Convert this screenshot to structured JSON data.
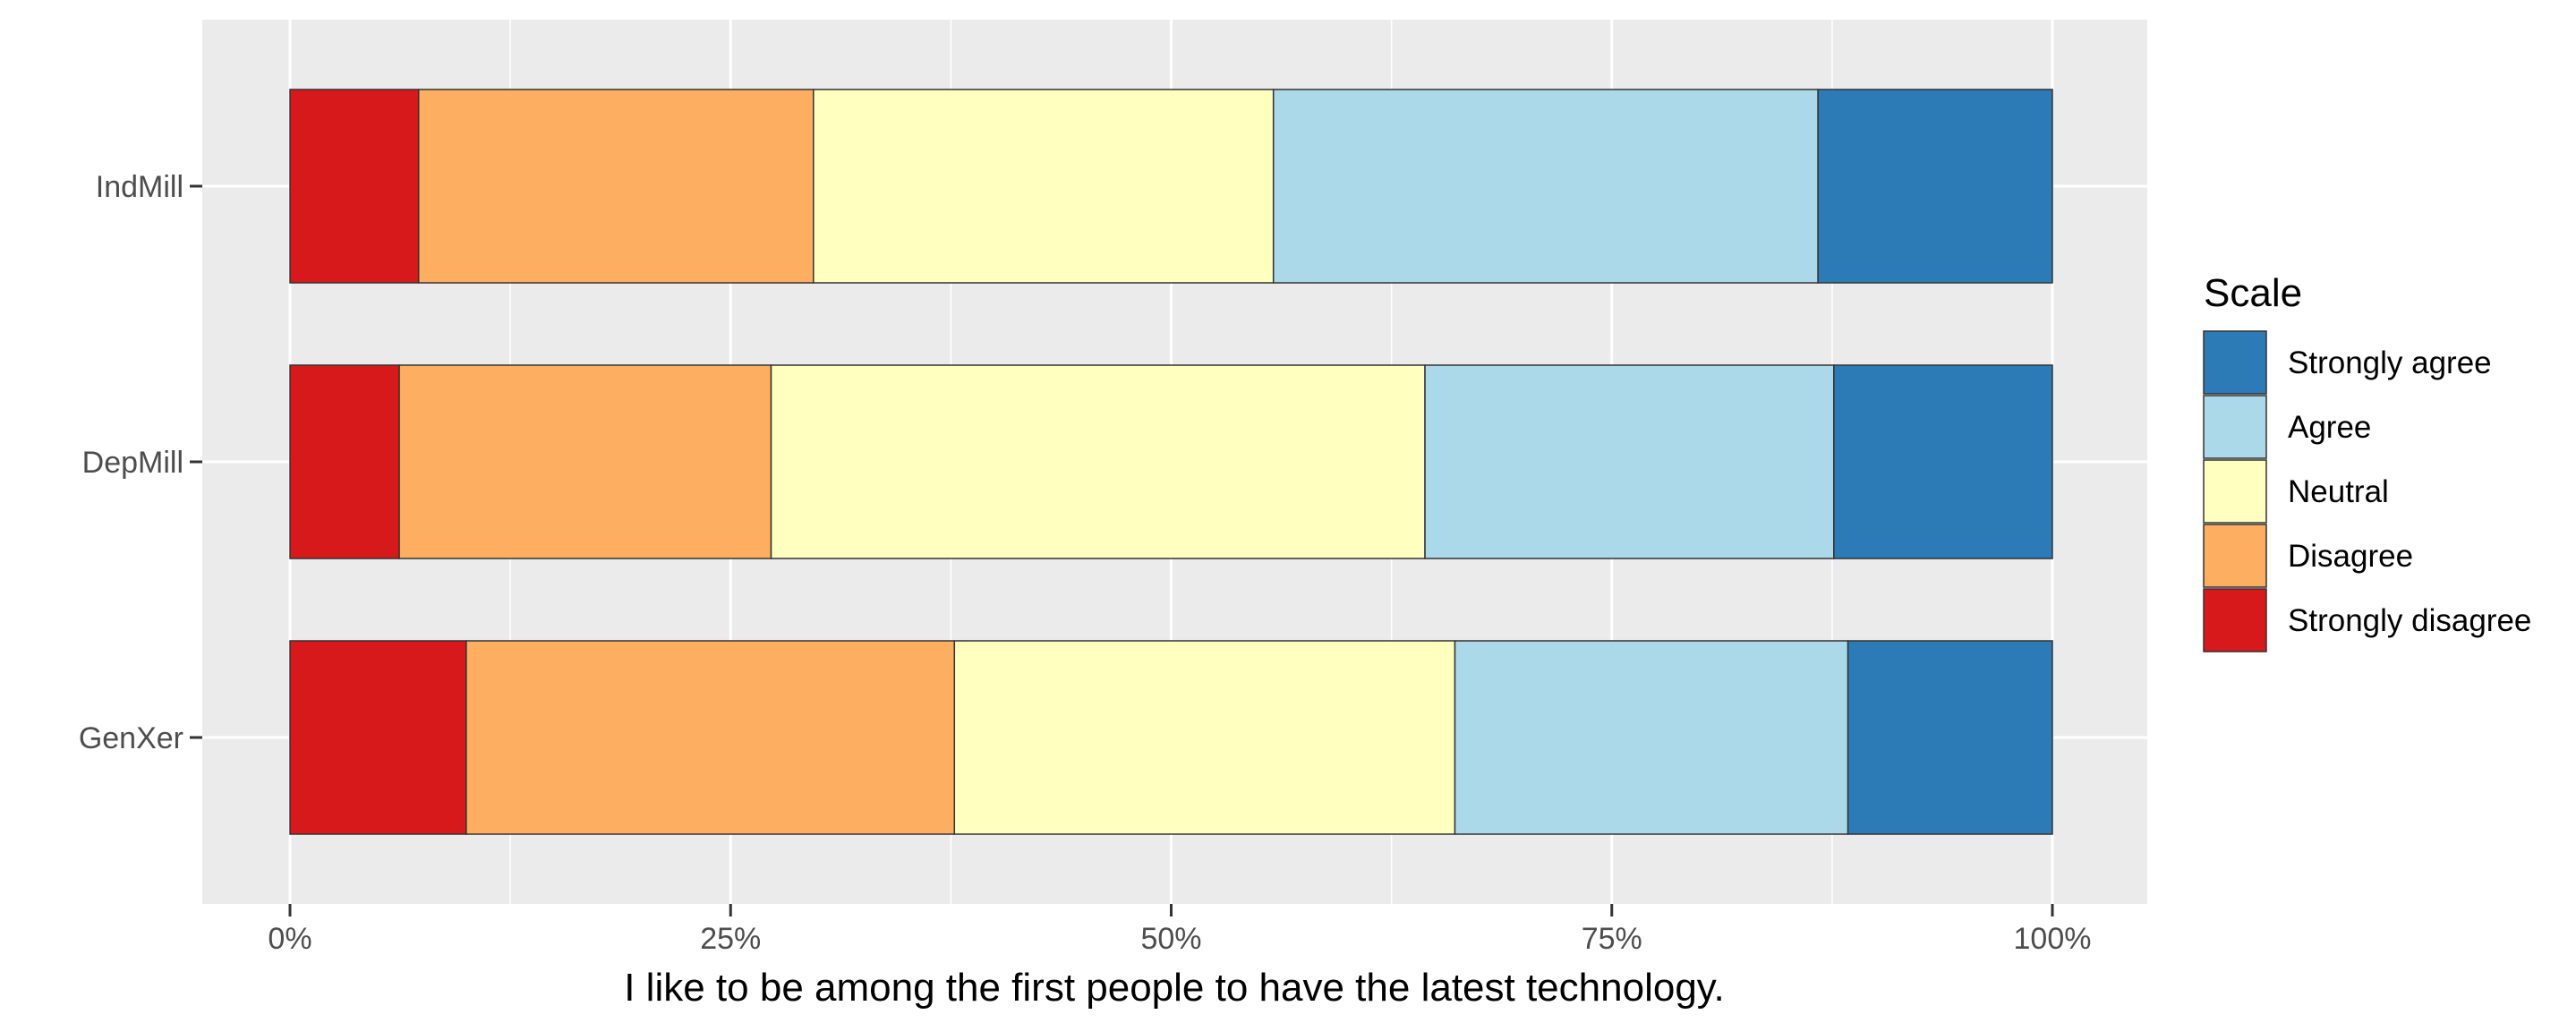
{
  "chart_data": {
    "type": "bar",
    "orientation": "horizontal",
    "stacked": true,
    "normalized": true,
    "categories": [
      "IndMill",
      "DepMill",
      "GenXer"
    ],
    "series": [
      {
        "name": "Strongly disagree",
        "color": "#D7191C",
        "values": [
          7.3,
          6.2,
          10.0
        ]
      },
      {
        "name": "Disagree",
        "color": "#FDAE61",
        "values": [
          22.4,
          21.1,
          27.7
        ]
      },
      {
        "name": "Neutral",
        "color": "#FFFFBF",
        "values": [
          26.1,
          37.1,
          28.4
        ]
      },
      {
        "name": "Agree",
        "color": "#ABD9E9",
        "values": [
          30.9,
          23.2,
          22.3
        ]
      },
      {
        "name": "Strongly agree",
        "color": "#2C7BB6",
        "values": [
          13.3,
          12.4,
          11.6
        ]
      }
    ],
    "xlabel": "I like to be among the first people to have the latest technology.",
    "ylabel": "",
    "x_ticks": [
      "0%",
      "25%",
      "50%",
      "75%",
      "100%"
    ],
    "xlim": [
      0,
      100
    ],
    "legend": {
      "title": "Scale",
      "position": "right",
      "entries": [
        "Strongly agree",
        "Agree",
        "Neutral",
        "Disagree",
        "Strongly disagree"
      ]
    },
    "grid": true,
    "panel_background": "#EBEBEB"
  }
}
